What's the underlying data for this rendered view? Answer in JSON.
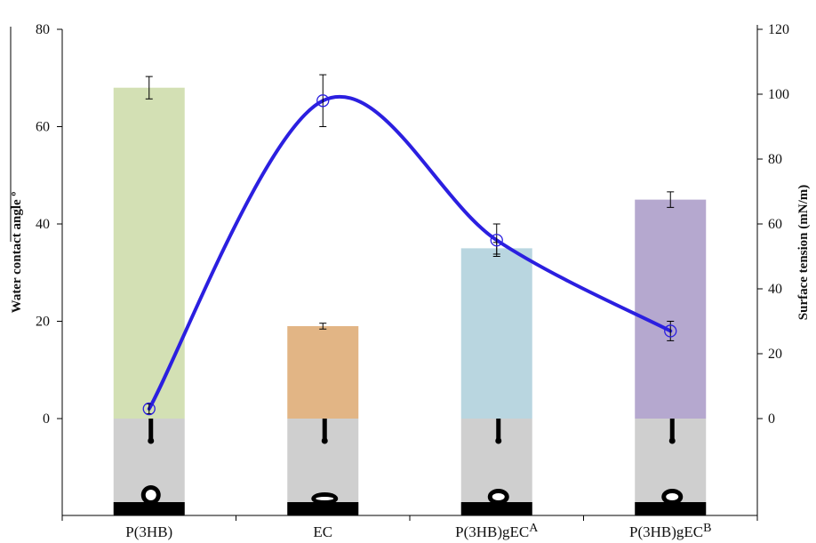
{
  "chart_data": {
    "type": "bar",
    "title": "",
    "categories": [
      {
        "base": "P(3HB)",
        "sup": ""
      },
      {
        "base": "EC",
        "sup": ""
      },
      {
        "base": "P(3HB)gEC",
        "sup": "A"
      },
      {
        "base": "P(3HB)gEC",
        "sup": "B"
      }
    ],
    "bar_colors": [
      "#d3e0b4",
      "#e2b585",
      "#b9d6e0",
      "#b5a8cf"
    ],
    "drop_image_color": "#cfcfcf",
    "series": [
      {
        "kind": "bar",
        "axis": "left",
        "values": [
          68,
          19,
          35,
          45
        ],
        "errors": [
          2.3,
          0.6,
          1.2,
          1.6
        ]
      },
      {
        "kind": "line",
        "axis": "right",
        "color": "#2b1fe0",
        "marker": "open-circle",
        "values": [
          3,
          98,
          55,
          27
        ],
        "errors": [
          1.5,
          8,
          5,
          3
        ]
      }
    ],
    "ylabel": "Water contact angle º",
    "ylim": [
      0,
      80
    ],
    "yticks": [
      0,
      20,
      40,
      60,
      80
    ],
    "y2label": "Surface tension (mN/m)",
    "y2lim": [
      0,
      120
    ],
    "y2ticks": [
      0,
      20,
      40,
      60,
      80,
      100,
      120
    ],
    "grid": false,
    "legend": "none"
  }
}
